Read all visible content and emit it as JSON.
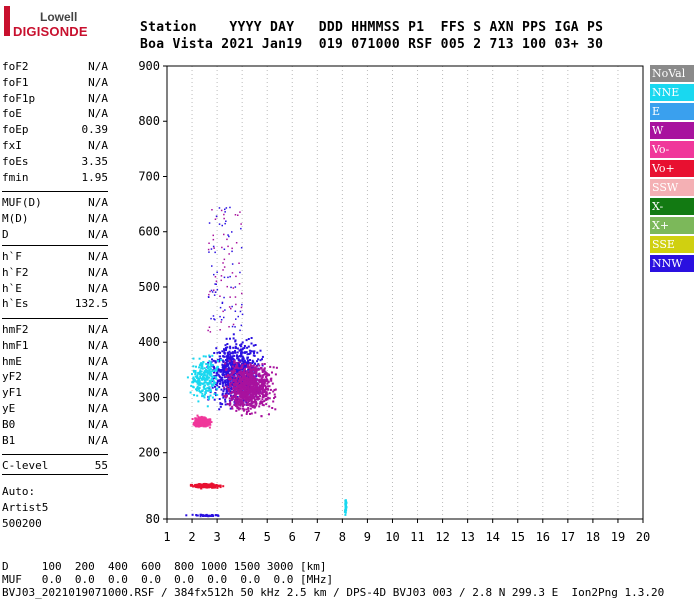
{
  "logo": {
    "top": "Lowell",
    "main": "DIGISONDE"
  },
  "header": {
    "line1": "Station    YYYY DAY   DDD HHMMSS P1  FFS S AXN PPS IGA PS",
    "line2": "Boa Vista 2021 Jan19  019 071000 RSF 005 2 713 100 03+ 30"
  },
  "params_group1": [
    {
      "name": "foF2",
      "value": "N/A"
    },
    {
      "name": "foF1",
      "value": "N/A"
    },
    {
      "name": "foF1p",
      "value": "N/A"
    },
    {
      "name": "foE",
      "value": "N/A"
    },
    {
      "name": "foEp",
      "value": "0.39"
    },
    {
      "name": "fxI",
      "value": "N/A"
    },
    {
      "name": "foEs",
      "value": "3.35"
    },
    {
      "name": "fmin",
      "value": "1.95"
    }
  ],
  "params_group2": [
    {
      "name": "MUF(D)",
      "value": "N/A"
    },
    {
      "name": "M(D)",
      "value": "N/A"
    },
    {
      "name": "D",
      "value": "N/A"
    }
  ],
  "params_group3": [
    {
      "name": "h`F",
      "value": "N/A"
    },
    {
      "name": "h`F2",
      "value": "N/A"
    },
    {
      "name": "h`E",
      "value": "N/A"
    },
    {
      "name": "h`Es",
      "value": "132.5"
    }
  ],
  "params_group4": [
    {
      "name": "hmF2",
      "value": "N/A"
    },
    {
      "name": "hmF1",
      "value": "N/A"
    },
    {
      "name": "hmE",
      "value": "N/A"
    },
    {
      "name": "yF2",
      "value": "N/A"
    },
    {
      "name": "yF1",
      "value": "N/A"
    },
    {
      "name": "yE",
      "value": "N/A"
    },
    {
      "name": "B0",
      "value": "N/A"
    },
    {
      "name": "B1",
      "value": "N/A"
    }
  ],
  "clevel": {
    "name": "C-level",
    "value": "55"
  },
  "auto": {
    "line1": "Auto:",
    "line2": "Artist5",
    "line3": "500200"
  },
  "legend": [
    {
      "label": "NoVal",
      "color": "#8a8a8a"
    },
    {
      "label": "NNE",
      "color": "#19d8f0"
    },
    {
      "label": "E",
      "color": "#3aa0ee"
    },
    {
      "label": "W",
      "color": "#a8129e"
    },
    {
      "label": "Vo-",
      "color": "#f0379a"
    },
    {
      "label": "Vo+",
      "color": "#e81030"
    },
    {
      "label": "SSW",
      "color": "#f4b0b4"
    },
    {
      "label": "X-",
      "color": "#127a12"
    },
    {
      "label": "X+",
      "color": "#7cb85a"
    },
    {
      "label": "SSE",
      "color": "#d0d010"
    },
    {
      "label": "NNW",
      "color": "#2a10e0"
    }
  ],
  "footer": {
    "line1": "D     100  200  400  600  800 1000 1500 3000 [km]",
    "line2": "MUF   0.0  0.0  0.0  0.0  0.0  0.0  0.0  0.0 [MHz]",
    "line3": "BVJ03_2021019071000.RSF / 384fx512h 50 kHz 2.5 km / DPS-4D BVJ03 003 / 2.8 N 299.3 E  Ion2Png 1.3.20"
  },
  "chart_data": {
    "type": "scatter",
    "title": "",
    "xlabel": "",
    "ylabel": "",
    "xlim": [
      1,
      20
    ],
    "ylim": [
      80,
      900
    ],
    "xticks": [
      1,
      2,
      3,
      4,
      5,
      6,
      7,
      8,
      9,
      10,
      11,
      12,
      13,
      14,
      15,
      16,
      17,
      18,
      19,
      20
    ],
    "yticks": [
      80,
      200,
      300,
      400,
      500,
      600,
      700,
      800,
      900
    ],
    "grid": "dotted vertical at integer MHz",
    "clusters": [
      {
        "series": "NNW",
        "x": [
          2.4,
          5.0
        ],
        "y": [
          270,
          420
        ],
        "density": "high"
      },
      {
        "series": "W",
        "x": [
          3.0,
          5.5
        ],
        "y": [
          260,
          380
        ],
        "density": "high"
      },
      {
        "series": "NNE",
        "x": [
          1.7,
          3.2
        ],
        "y": [
          280,
          390
        ],
        "density": "medium"
      },
      {
        "series": "Vo-",
        "x": [
          1.9,
          2.8
        ],
        "y": [
          245,
          270
        ],
        "density": "medium"
      },
      {
        "series": "Vo+",
        "x": [
          1.8,
          3.3
        ],
        "y": [
          137,
          147
        ],
        "density": "medium"
      },
      {
        "series": "NNW",
        "x": [
          1.6,
          3.4
        ],
        "y": [
          86,
          90
        ],
        "density": "low"
      },
      {
        "series": "NNE",
        "x": [
          8.05,
          8.15
        ],
        "y": [
          85,
          125
        ],
        "density": "low"
      }
    ]
  }
}
